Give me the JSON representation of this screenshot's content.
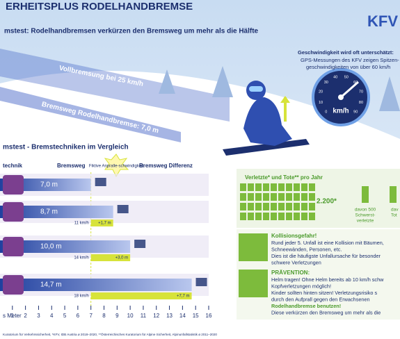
{
  "header": {
    "title": "ERHEITSPLUS RODELHANDBREMSE",
    "subtitle": "mstest: Rodelhandbremsen verkürzen den Bremsweg um mehr als die Hälfte",
    "logo": "KFV"
  },
  "track": {
    "full_brake": "Vollbremsung bei 25 km/h",
    "hand_brake": "Bremsweg Rodelhandbremse: 7,0 m"
  },
  "speed": {
    "heading": "Geschwindigkeit wird oft unterschätzt:",
    "lines": [
      "GPS-Messungen des KFV zeigen Spitzen-",
      "geschwindigkeiten von über 60 km/h"
    ],
    "gauge_unit": "km/h",
    "gauge_ticks": [
      "0",
      "10",
      "20",
      "30",
      "40",
      "50",
      "60",
      "70",
      "80",
      "90"
    ]
  },
  "chart_data": {
    "type": "hbar",
    "title": "mstest - Bremstechniken im Vergleich",
    "columns": [
      "technik",
      "Bremsweg",
      "Fiktive Anpralle-schwindigkeit",
      "Bremsweg Differenz"
    ],
    "categories": [
      null,
      null,
      null,
      null
    ],
    "values": [
      7.0,
      8.7,
      10.0,
      14.7
    ],
    "value_labels": [
      "7,0 m",
      "8,7 m",
      "10,0 m",
      "14,7 m"
    ],
    "differences": [
      null,
      1.7,
      3.0,
      7.7
    ],
    "difference_labels": [
      null,
      "+1,7 m",
      "+3,0 m",
      "+7,7 m"
    ],
    "impact_labels": [
      null,
      "11 km/h",
      "14 km/h",
      "18 km/h"
    ],
    "color": "#2f55b5",
    "difference_color": "#d7e33a",
    "xlabel": "s Meter",
    "xlim": [
      0,
      16
    ],
    "xticks": [
      1,
      2,
      3,
      4,
      5,
      6,
      7,
      8,
      9,
      10,
      11,
      12,
      13,
      14,
      15,
      16
    ]
  },
  "injuries": {
    "heading": "Verletzte* und Tote** pro Jahr",
    "total": "2.200*",
    "severe": [
      "davon 500",
      "Schwerst-",
      "verletzte"
    ],
    "dead": [
      "dav",
      "Tot"
    ]
  },
  "collision": {
    "heading": "Kollisionsgefahr!",
    "lines": [
      "Rund jeder 5. Unfall ist eine Kollision mit Bäumen,",
      "Schneewänden, Personen, etc.",
      "Dies ist die häufigste Unfallursache für besonder",
      "schwere Verletzungen"
    ]
  },
  "prevention": {
    "heading": "PRÄVENTION:",
    "lines": [
      "Helm tragen! Ohne Helm bereits ab 10 km/h schw",
      "Kopfverletzungen möglich!",
      "Kinder sollten hinten sitzen! Verletzungsrisiko s",
      "durch den Aufprall gegen den Erwachsenen",
      "Rodelhandbremse benutzen!",
      "Diese verkürzen den Bremsweg um mehr als die"
    ]
  },
  "footer": "Kuratorium für Verkehrssicherheit, *KFV, IDB Austria ø 2018–2020, **Österreichisches Kuratorium für Alpine Sicherheit, Alpinunfallstatistik ø 2011–2020"
}
